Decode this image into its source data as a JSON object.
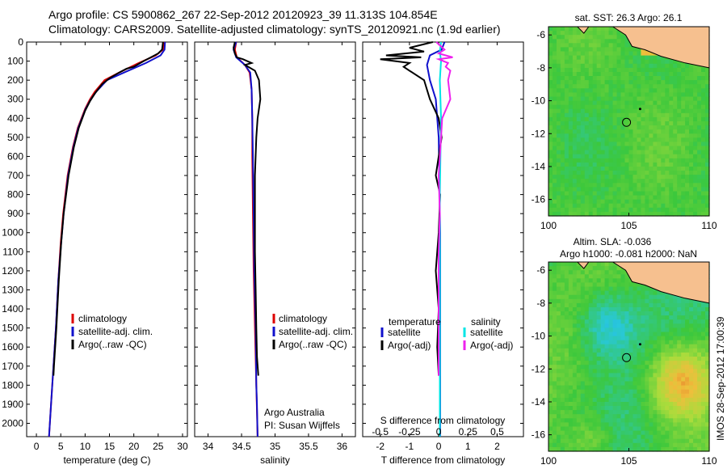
{
  "title": {
    "line1": "Argo profile: CS 5900862_267 22-Sep-2012 20120923_39 11.313S 104.854E",
    "line2": "Climatology: CARS2009. Satellite-adjusted climatology: synTS_20120921.nc (1.9d earlier)"
  },
  "chart_data": [
    {
      "type": "line",
      "id": "temperature",
      "xlabel": "temperature (deg C)",
      "ylabel": "",
      "xlim": [
        -2,
        31
      ],
      "ylim": [
        2070,
        0
      ],
      "xticks": [
        0,
        5,
        10,
        15,
        20,
        25,
        30
      ],
      "yticks": [
        0,
        100,
        200,
        300,
        400,
        500,
        600,
        700,
        800,
        900,
        1000,
        1100,
        1200,
        1300,
        1400,
        1500,
        1600,
        1700,
        1800,
        1900,
        2000
      ],
      "legend": [
        "climatology",
        "satellite-adj. clim.",
        "Argo(..raw -QC)"
      ],
      "series": [
        {
          "name": "climatology",
          "color": "#dd0000",
          "points": [
            [
              26.2,
              0
            ],
            [
              26.0,
              40
            ],
            [
              24.5,
              70
            ],
            [
              21.0,
              110
            ],
            [
              17.0,
              160
            ],
            [
              14.0,
              200
            ],
            [
              12.0,
              260
            ],
            [
              11.0,
              300
            ],
            [
              10.0,
              350
            ],
            [
              8.5,
              450
            ],
            [
              7.5,
              550
            ],
            [
              6.4,
              700
            ],
            [
              5.5,
              900
            ],
            [
              5.0,
              1050
            ],
            [
              4.5,
              1250
            ],
            [
              4.0,
              1500
            ],
            [
              3.5,
              1700
            ],
            [
              3.0,
              1900
            ],
            [
              2.6,
              2070
            ]
          ]
        },
        {
          "name": "satellite-adj. clim.",
          "color": "#1010cc",
          "points": [
            [
              26.4,
              0
            ],
            [
              26.3,
              40
            ],
            [
              25.5,
              70
            ],
            [
              22.5,
              110
            ],
            [
              18.0,
              160
            ],
            [
              14.5,
              200
            ],
            [
              12.3,
              260
            ],
            [
              11.2,
              300
            ],
            [
              10.1,
              350
            ],
            [
              8.6,
              450
            ],
            [
              7.6,
              550
            ],
            [
              6.5,
              700
            ],
            [
              5.6,
              900
            ],
            [
              5.1,
              1050
            ],
            [
              4.5,
              1250
            ],
            [
              4.0,
              1500
            ],
            [
              3.5,
              1700
            ],
            [
              3.0,
              1900
            ],
            [
              2.6,
              2070
            ]
          ]
        },
        {
          "name": "Argo(..raw -QC)",
          "color": "#000000",
          "points": [
            [
              26.0,
              0
            ],
            [
              25.8,
              40
            ],
            [
              25.0,
              60
            ],
            [
              23.5,
              80
            ],
            [
              22.0,
              100
            ],
            [
              20.0,
              130
            ],
            [
              18.5,
              140
            ],
            [
              17.0,
              160
            ],
            [
              15.0,
              190
            ],
            [
              13.5,
              220
            ],
            [
              12.0,
              270
            ],
            [
              11.0,
              310
            ],
            [
              10.0,
              360
            ],
            [
              8.7,
              450
            ],
            [
              7.7,
              550
            ],
            [
              6.6,
              700
            ],
            [
              5.6,
              900
            ],
            [
              5.1,
              1050
            ],
            [
              4.6,
              1250
            ],
            [
              4.1,
              1500
            ],
            [
              3.6,
              1700
            ],
            [
              3.5,
              1750
            ]
          ]
        }
      ]
    },
    {
      "type": "line",
      "id": "salinity",
      "xlabel": "salinity",
      "xlim": [
        33.8,
        36.2
      ],
      "ylim": [
        2070,
        0
      ],
      "xticks": [
        34,
        34.5,
        35,
        35.5,
        36
      ],
      "legend": [
        "climatology",
        "satellite-adj. clim.",
        "Argo(..raw -QC)"
      ],
      "annotations": [
        "Argo Australia",
        "PI: Susan Wijffels"
      ],
      "series": [
        {
          "name": "climatology",
          "color": "#dd0000",
          "points": [
            [
              34.42,
              0
            ],
            [
              34.4,
              40
            ],
            [
              34.43,
              80
            ],
            [
              34.55,
              120
            ],
            [
              34.62,
              160
            ],
            [
              34.65,
              250
            ],
            [
              34.66,
              400
            ],
            [
              34.66,
              600
            ],
            [
              34.67,
              900
            ],
            [
              34.68,
              1200
            ],
            [
              34.7,
              1500
            ],
            [
              34.72,
              1800
            ],
            [
              34.74,
              2070
            ]
          ]
        },
        {
          "name": "satellite-adj. clim.",
          "color": "#1010cc",
          "points": [
            [
              34.42,
              0
            ],
            [
              34.38,
              40
            ],
            [
              34.42,
              80
            ],
            [
              34.55,
              120
            ],
            [
              34.63,
              160
            ],
            [
              34.65,
              250
            ],
            [
              34.66,
              400
            ],
            [
              34.67,
              600
            ],
            [
              34.68,
              900
            ],
            [
              34.69,
              1200
            ],
            [
              34.71,
              1500
            ],
            [
              34.72,
              1800
            ],
            [
              34.73,
              1900
            ],
            [
              34.74,
              2070
            ]
          ]
        },
        {
          "name": "Argo(..raw -QC)",
          "color": "#000000",
          "points": [
            [
              34.4,
              0
            ],
            [
              34.38,
              30
            ],
            [
              34.4,
              60
            ],
            [
              34.43,
              80
            ],
            [
              34.52,
              90
            ],
            [
              34.65,
              110
            ],
            [
              34.55,
              120
            ],
            [
              34.7,
              150
            ],
            [
              34.76,
              200
            ],
            [
              34.78,
              300
            ],
            [
              34.74,
              400
            ],
            [
              34.72,
              500
            ],
            [
              34.7,
              700
            ],
            [
              34.7,
              900
            ],
            [
              34.7,
              1100
            ],
            [
              34.71,
              1300
            ],
            [
              34.72,
              1500
            ],
            [
              34.73,
              1650
            ],
            [
              34.75,
              1750
            ]
          ]
        }
      ]
    },
    {
      "type": "line",
      "id": "difference",
      "xlabel": "T difference from climatology",
      "x2label": "S difference from climatology",
      "xlim": [
        -2.6,
        2.9
      ],
      "x2lim": [
        -0.65,
        0.725
      ],
      "ylim": [
        2070,
        0
      ],
      "xticks": [
        -2,
        -1,
        0,
        1,
        2
      ],
      "x2ticks": [
        -0.5,
        -0.25,
        0,
        0.25,
        0.5
      ],
      "legend_temperature": "temperature",
      "legend_salinity": "salinity",
      "legend": [
        "satellite",
        "Argo(-adj)",
        "satellite",
        "Argo(-adj)"
      ],
      "series": [
        {
          "name": "temperature satellite",
          "color": "#1010cc",
          "axis": "T",
          "points": [
            [
              0.2,
              0
            ],
            [
              0.1,
              40
            ],
            [
              -0.3,
              70
            ],
            [
              -0.4,
              120
            ],
            [
              -0.3,
              200
            ],
            [
              -0.1,
              300
            ],
            [
              0.0,
              500
            ],
            [
              0.05,
              1000
            ],
            [
              0.05,
              1500
            ],
            [
              0.05,
              2070
            ]
          ]
        },
        {
          "name": "temperature Argo(-adj)",
          "color": "#000000",
          "axis": "T",
          "points": [
            [
              -0.2,
              0
            ],
            [
              -1.0,
              30
            ],
            [
              -0.5,
              50
            ],
            [
              -1.8,
              70
            ],
            [
              -0.6,
              80
            ],
            [
              -2.0,
              90
            ],
            [
              -1.0,
              110
            ],
            [
              -1.2,
              130
            ],
            [
              -1.0,
              150
            ],
            [
              -0.5,
              200
            ],
            [
              -0.4,
              250
            ],
            [
              -0.3,
              300
            ],
            [
              0.0,
              400
            ],
            [
              0.1,
              500
            ],
            [
              0.0,
              600
            ],
            [
              -0.1,
              700
            ],
            [
              0.05,
              800
            ],
            [
              0.0,
              1000
            ],
            [
              -0.1,
              1200
            ],
            [
              0.0,
              1400
            ],
            [
              -0.05,
              1600
            ],
            [
              0.0,
              1750
            ]
          ]
        },
        {
          "name": "salinity satellite",
          "color": "#00e5e5",
          "axis": "S",
          "points": [
            [
              0.02,
              0
            ],
            [
              0.01,
              50
            ],
            [
              0.02,
              100
            ],
            [
              0.01,
              200
            ],
            [
              0.02,
              400
            ],
            [
              0.01,
              800
            ],
            [
              0.01,
              1200
            ],
            [
              0.01,
              1600
            ],
            [
              0.01,
              2070
            ]
          ]
        },
        {
          "name": "salinity Argo(-adj)",
          "color": "#ee22ee",
          "axis": "S",
          "points": [
            [
              -0.02,
              0
            ],
            [
              0.05,
              40
            ],
            [
              0.0,
              60
            ],
            [
              0.12,
              80
            ],
            [
              0.0,
              90
            ],
            [
              0.08,
              110
            ],
            [
              0.06,
              130
            ],
            [
              0.1,
              150
            ],
            [
              0.08,
              200
            ],
            [
              0.1,
              300
            ],
            [
              0.03,
              400
            ],
            [
              0.02,
              500
            ],
            [
              0.0,
              700
            ],
            [
              0.01,
              900
            ],
            [
              0.0,
              1100
            ],
            [
              0.0,
              1300
            ],
            [
              0.0,
              1500
            ],
            [
              0.0,
              1750
            ]
          ]
        }
      ]
    },
    {
      "type": "heatmap",
      "id": "sst-map",
      "title": "sat. SST: 26.3 Argo: 26.1",
      "xlim": [
        100,
        110
      ],
      "ylim": [
        -17,
        -5.5
      ],
      "xticks": [
        100,
        105,
        110
      ],
      "yticks": [
        -6,
        -8,
        -10,
        -12,
        -14,
        -16
      ],
      "argo_position": [
        104.854,
        -11.313
      ]
    },
    {
      "type": "heatmap",
      "id": "sla-map",
      "title1": "Altim. SLA: -0.036",
      "title2": "Argo h1000: -0.081 h2000: NaN",
      "xlim": [
        100,
        110
      ],
      "ylim": [
        -17,
        -5.5
      ],
      "xticks": [
        100,
        105,
        110
      ],
      "yticks": [
        -6,
        -8,
        -10,
        -12,
        -14,
        -16
      ],
      "argo_position": [
        104.854,
        -11.313
      ]
    }
  ],
  "footer": {
    "imos_stamp": "IMOS 28-Sep-2012 17:00:39"
  }
}
